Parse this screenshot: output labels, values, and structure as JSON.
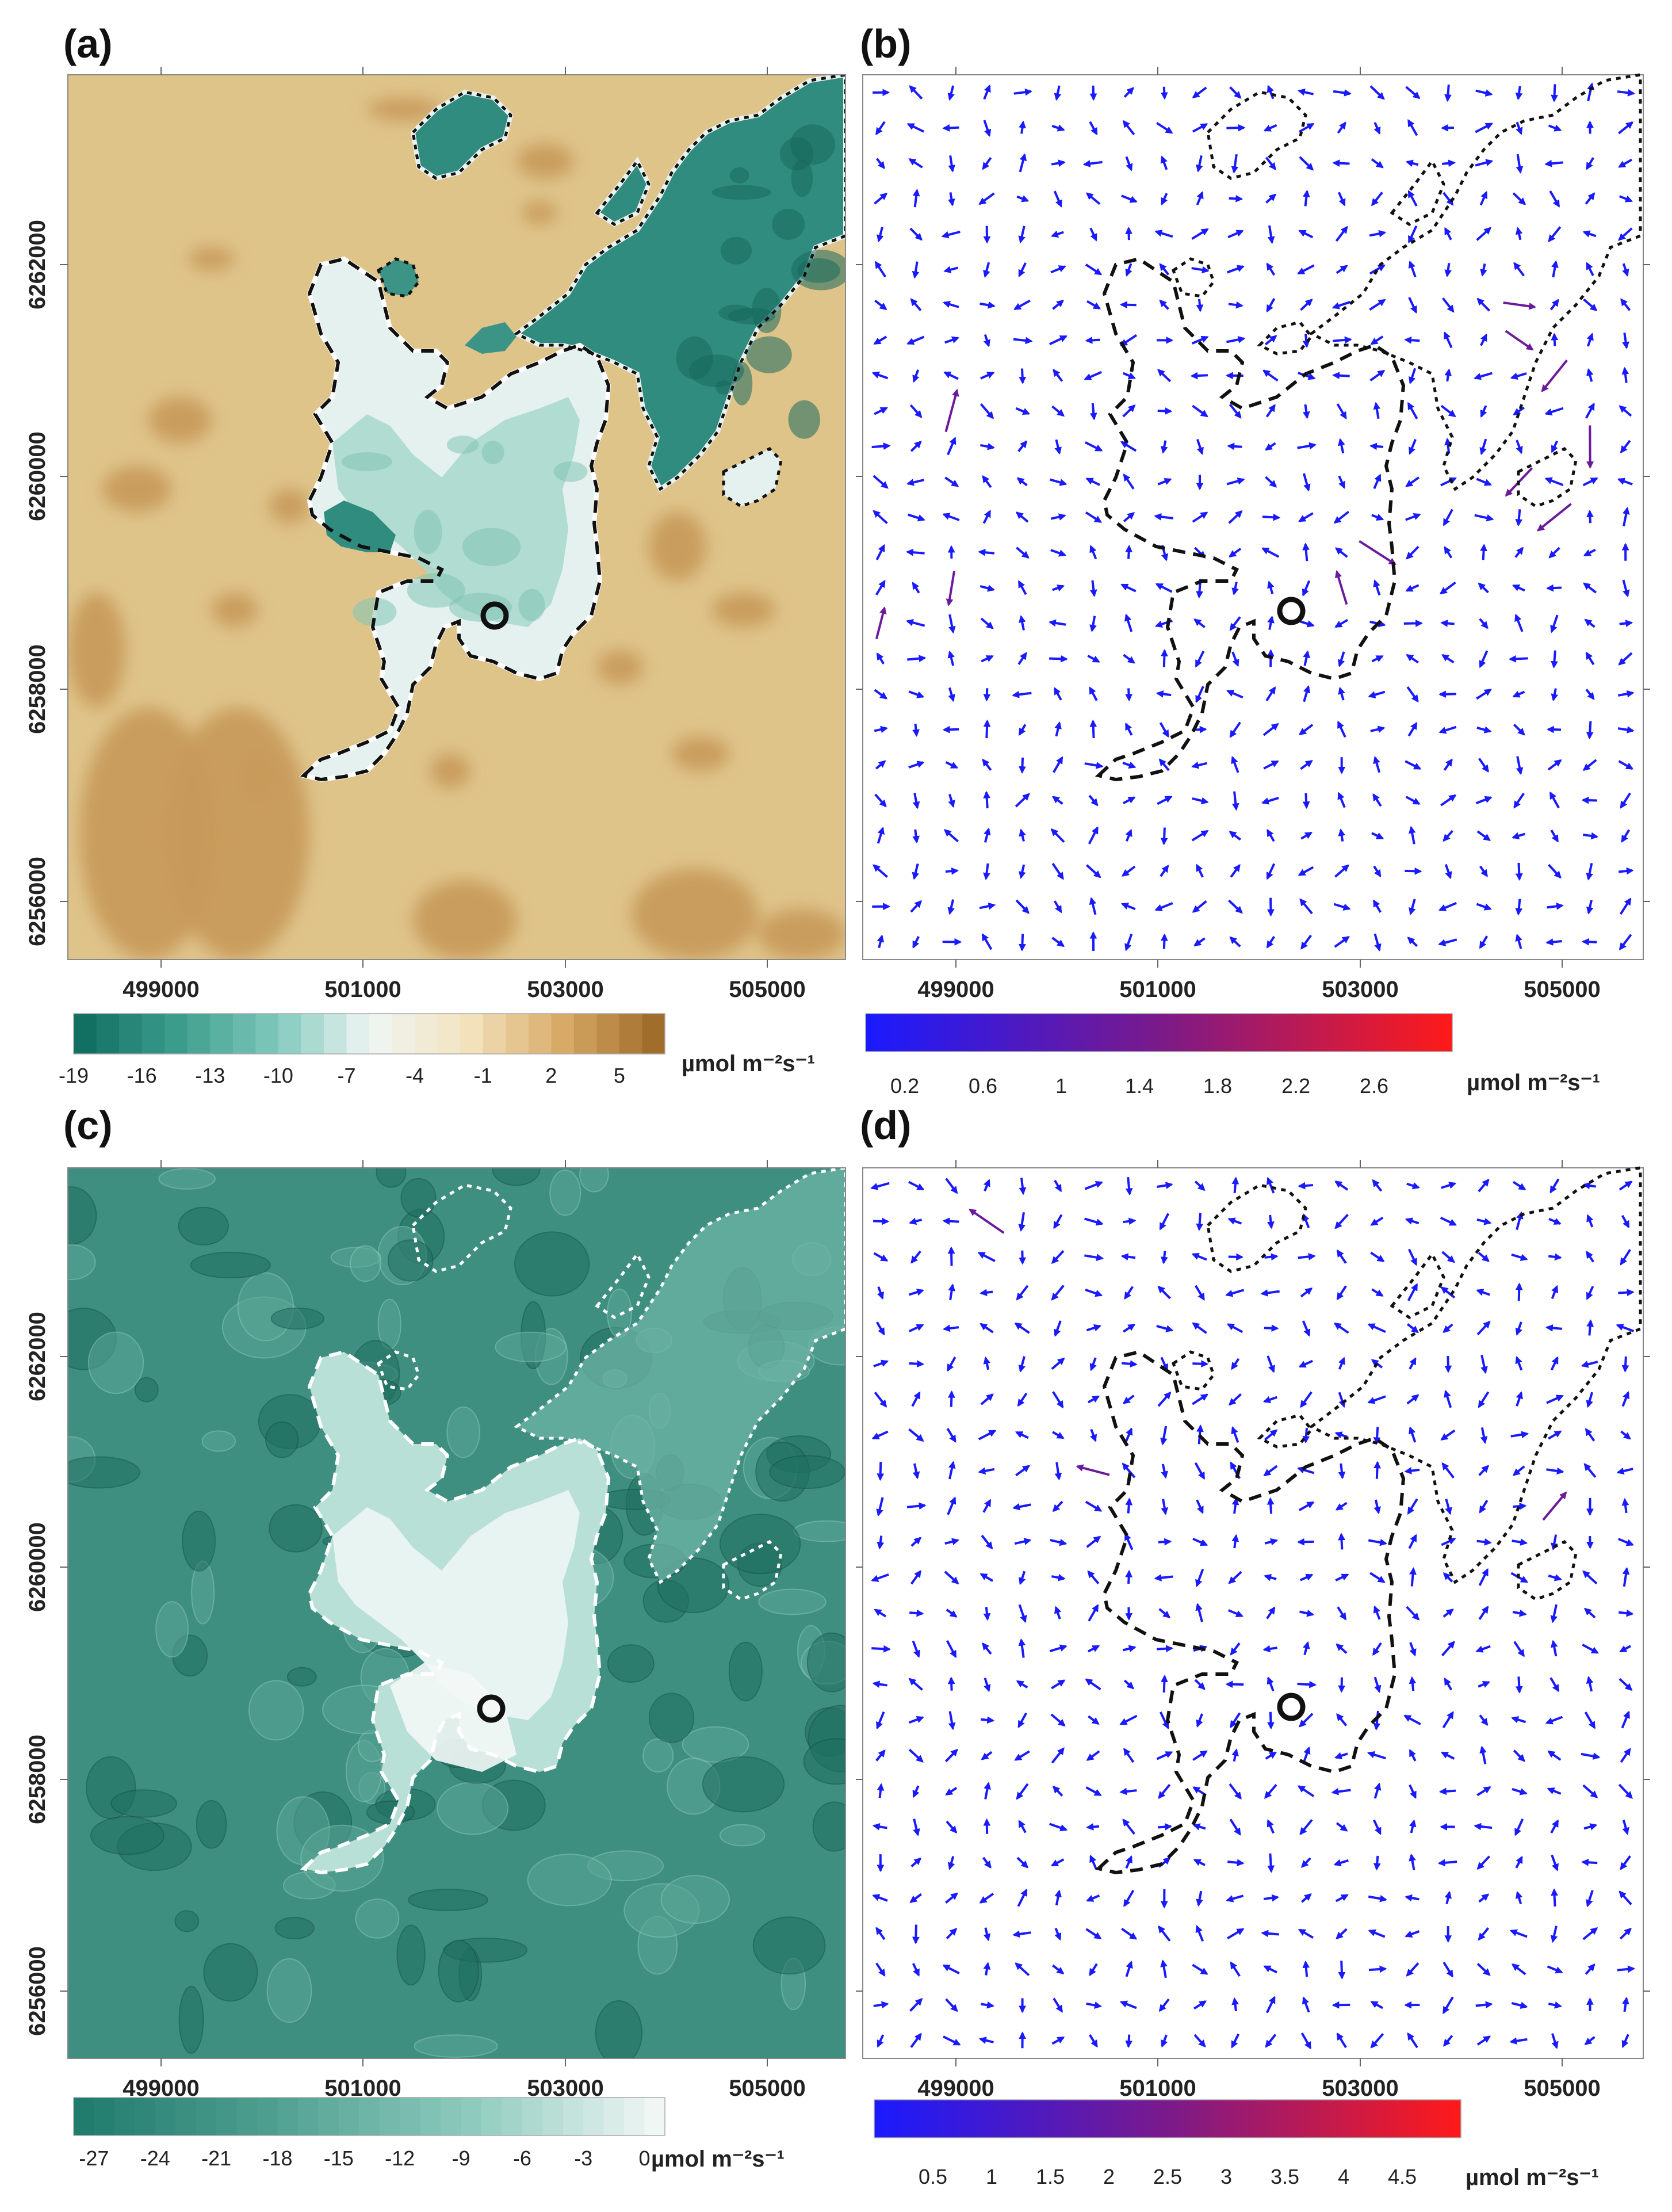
{
  "colors": {
    "teal_dark": "#0d6b5e",
    "teal_light": "#eef6f4",
    "tan": "#dfc48a",
    "tan_dark": "#c7995a",
    "brown": "#9a6523",
    "vector_low": "#1a1aff",
    "vector_mid": "#7a1a8a",
    "vector_high": "#ff1a1a"
  },
  "icons": [
    "site-marker-circle-icon"
  ],
  "chart_data": [
    {
      "panel": "(a)",
      "type": "heatmap",
      "x_ticks": [
        "499000",
        "501000",
        "503000",
        "505000"
      ],
      "y_ticks": [
        "6262000",
        "6260000",
        "6258000",
        "6256000"
      ],
      "colorbar": {
        "ticks": [
          "-19",
          "-16",
          "-13",
          "-10",
          "-7",
          "-4",
          "-1",
          "2",
          "5"
        ],
        "range": [
          -19,
          7
        ],
        "colors": [
          "#0d6b5e",
          "#3a9a8a",
          "#7ac6b8",
          "#eef6f4",
          "#f3e3bf",
          "#d6a863",
          "#9a6523"
        ],
        "unit": "µmol m⁻²s⁻¹"
      }
    },
    {
      "panel": "(b)",
      "type": "vector",
      "x_ticks": [
        "499000",
        "501000",
        "503000",
        "505000"
      ],
      "colorbar": {
        "ticks": [
          "0.2",
          "0.6",
          "1",
          "1.4",
          "1.8",
          "2.2",
          "2.6"
        ],
        "range": [
          0,
          3
        ],
        "colors": [
          "#1a1aff",
          "#7a1a8a",
          "#ff1a1a"
        ],
        "unit": "µmol m⁻²s⁻¹"
      }
    },
    {
      "panel": "(c)",
      "type": "heatmap",
      "x_ticks": [
        "499000",
        "501000",
        "503000",
        "505000"
      ],
      "y_ticks": [
        "6262000",
        "6260000",
        "6258000",
        "6256000"
      ],
      "colorbar": {
        "ticks": [
          "-27",
          "-24",
          "-21",
          "-18",
          "-15",
          "-12",
          "-9",
          "-6",
          "-3",
          "0"
        ],
        "range": [
          -28,
          1
        ],
        "colors": [
          "#1f7a6c",
          "#4f9f90",
          "#8ccabd",
          "#f4f8f7"
        ],
        "unit": "µmol m⁻²s⁻¹"
      }
    },
    {
      "panel": "(d)",
      "type": "vector",
      "x_ticks": [
        "499000",
        "501000",
        "503000",
        "505000"
      ],
      "colorbar": {
        "ticks": [
          "0.5",
          "1",
          "1.5",
          "2",
          "2.5",
          "3",
          "3.5",
          "4",
          "4.5"
        ],
        "range": [
          0,
          5
        ],
        "colors": [
          "#1a1aff",
          "#7a1a8a",
          "#ff1a1a"
        ],
        "unit": "µmol m⁻²s⁻¹"
      }
    }
  ]
}
